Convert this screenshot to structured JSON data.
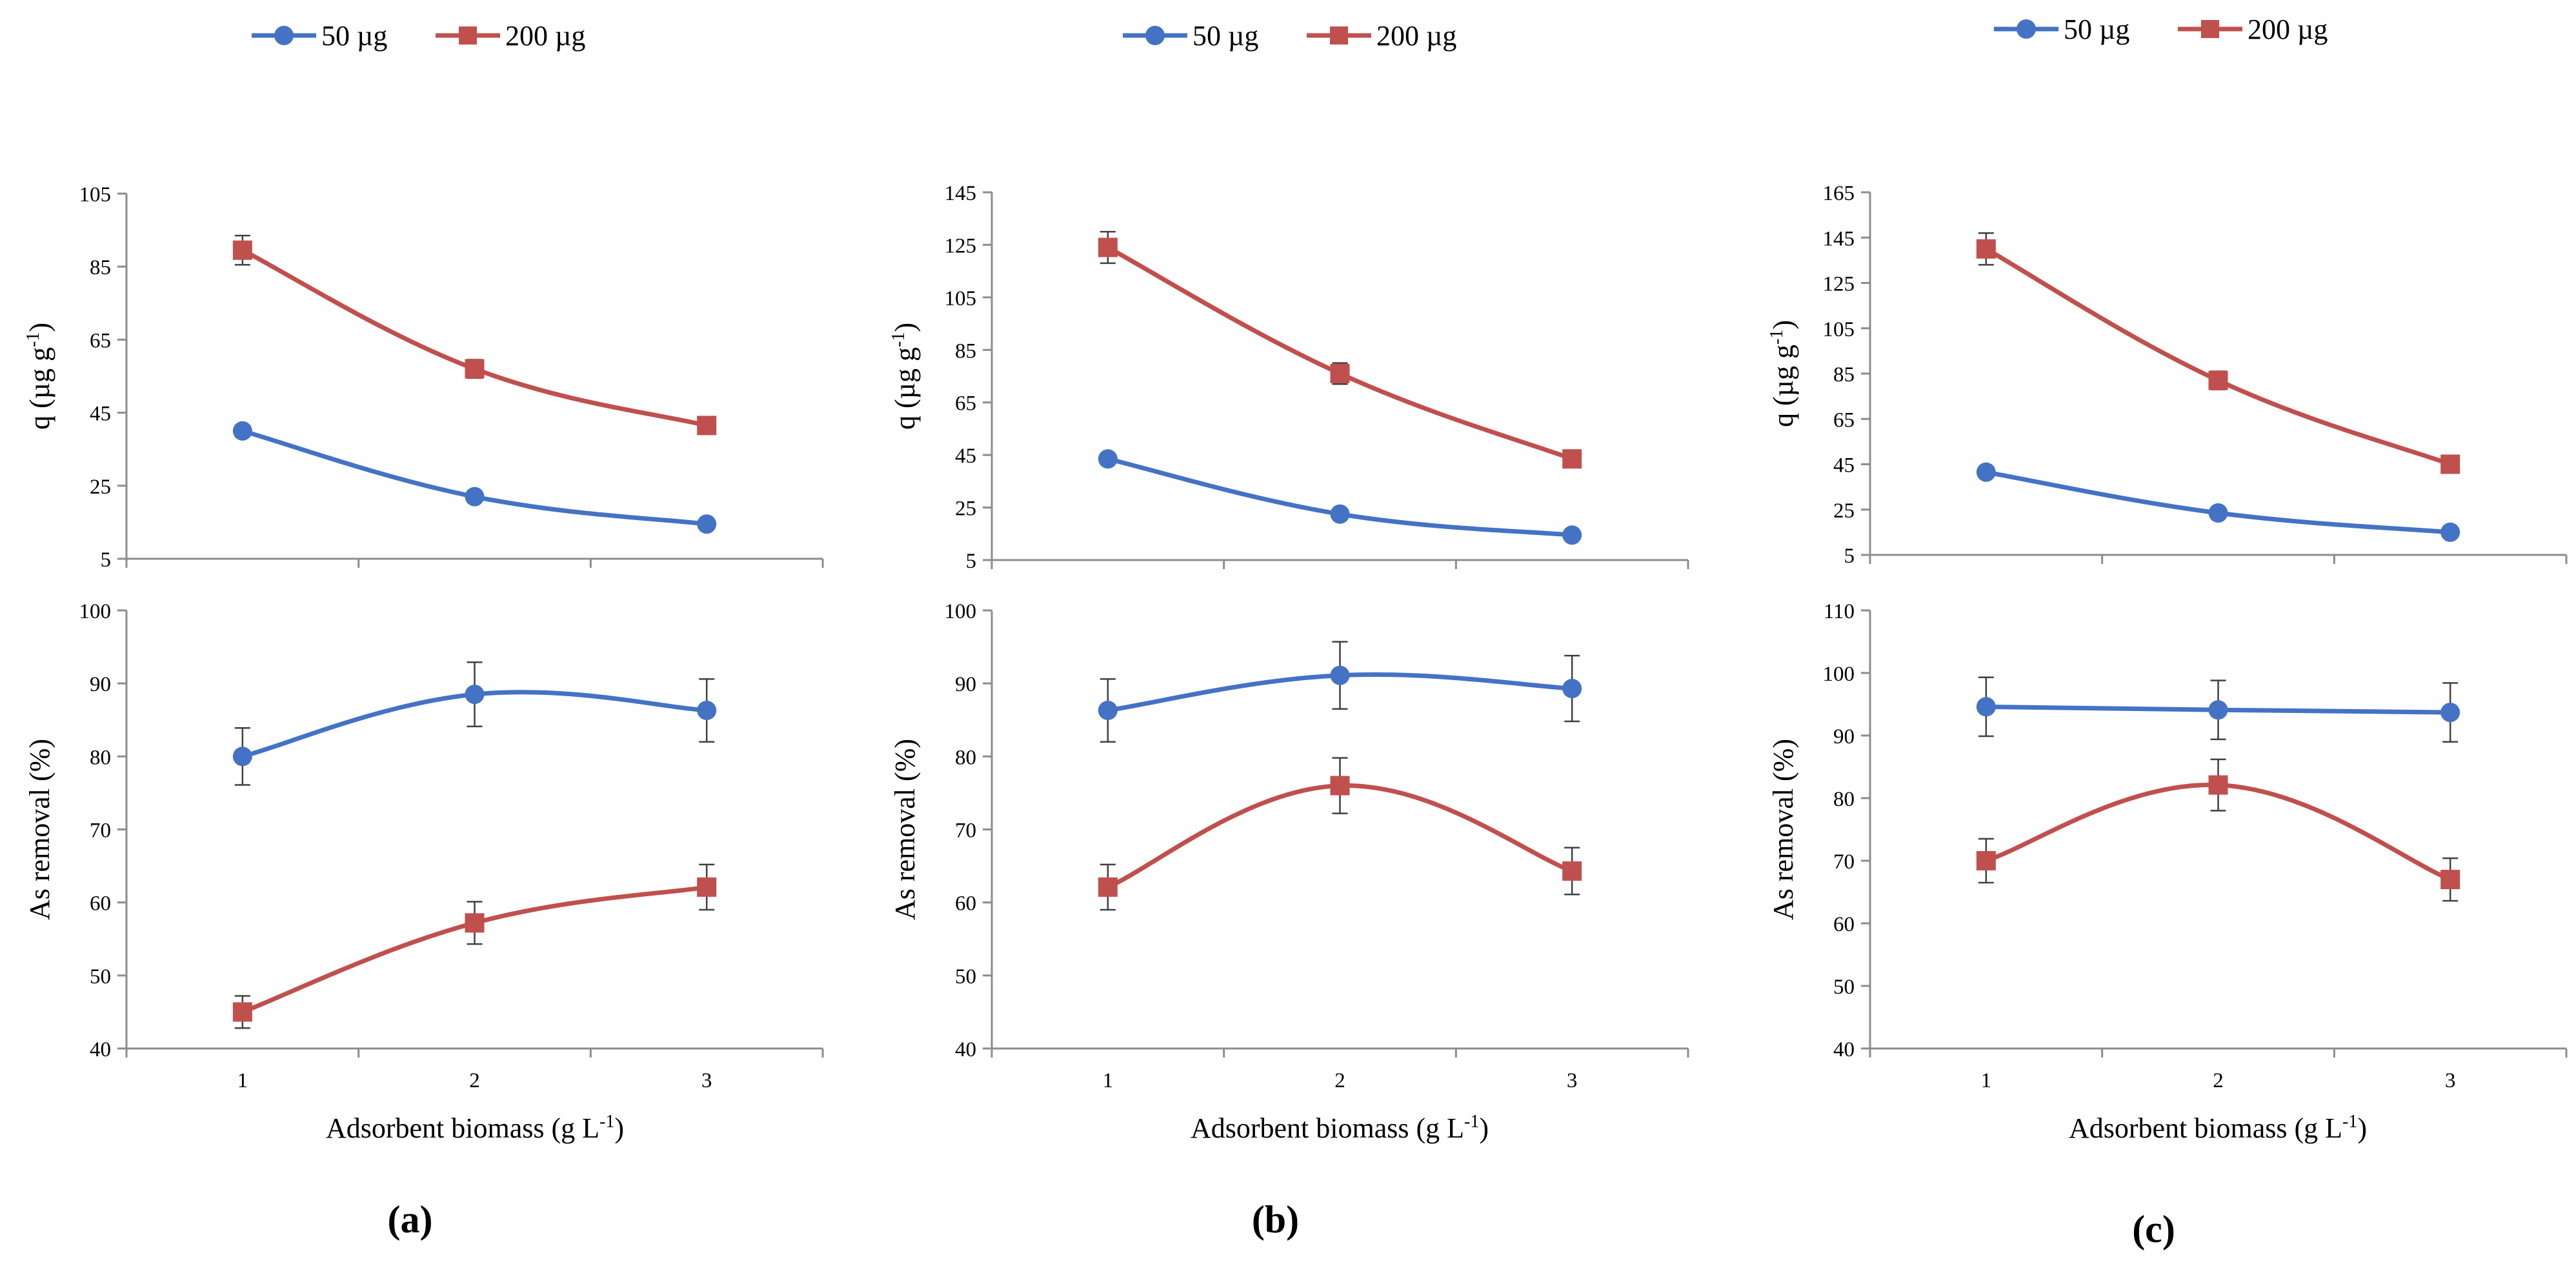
{
  "colors": {
    "series1": "#4472C4",
    "series2": "#C0504D",
    "axis": "#8C8C8C",
    "errbar": "#404040"
  },
  "chart_data": [
    {
      "panel_label": "(a)",
      "legend": [
        "50 µg",
        "200 µg"
      ],
      "xlabel": "Adsorbent biomass",
      "xunit_pre": "(g L",
      "xunit_sup": "-1",
      "xunit_post": ")",
      "categories": [
        "1",
        "2",
        "3"
      ],
      "subplots": [
        {
          "type": "line",
          "kind": "q",
          "ylabel": "q (µg g",
          "ylabel_sup": "-1",
          "ylabel_post": ")",
          "ylim": [
            5,
            105
          ],
          "yticks": [
            "5",
            "25",
            "45",
            "65",
            "85",
            "105"
          ],
          "series": [
            {
              "name": "50 µg",
              "values": [
                40,
                22,
                14.5
              ],
              "errors": [
                1.5,
                1,
                0.8
              ]
            },
            {
              "name": "200 µg",
              "values": [
                89.5,
                57,
                41.5
              ],
              "errors": [
                4,
                2.5,
                1
              ]
            }
          ]
        },
        {
          "type": "line",
          "kind": "removal",
          "ylabel": "As removal (%)",
          "ylim": [
            40,
            100
          ],
          "yticks": [
            "40",
            "50",
            "60",
            "70",
            "80",
            "90",
            "100"
          ],
          "series": [
            {
              "name": "50 µg",
              "values": [
                80,
                88.5,
                86.3
              ],
              "errors": [
                3.9,
                4.4,
                4.3
              ]
            },
            {
              "name": "200 µg",
              "values": [
                45,
                57.2,
                62.1
              ],
              "errors": [
                2.2,
                2.9,
                3.1
              ]
            }
          ]
        }
      ]
    },
    {
      "panel_label": "(b)",
      "legend": [
        "50 µg",
        "200 µg"
      ],
      "xlabel": "Adsorbent biomass",
      "xunit_pre": "(g L",
      "xunit_sup": "-1",
      "xunit_post": ")",
      "categories": [
        "1",
        "2",
        "3"
      ],
      "subplots": [
        {
          "type": "line",
          "kind": "q",
          "ylabel": "q (µg g",
          "ylabel_sup": "-1",
          "ylabel_post": ")",
          "ylim": [
            5,
            145
          ],
          "yticks": [
            "5",
            "25",
            "45",
            "65",
            "85",
            "105",
            "125",
            "145"
          ],
          "series": [
            {
              "name": "50 µg",
              "values": [
                43.5,
                22.5,
                14.5
              ],
              "errors": [
                1.2,
                1,
                0.8
              ]
            },
            {
              "name": "200 µg",
              "values": [
                124,
                76,
                43.5
              ],
              "errors": [
                6,
                4,
                1
              ]
            }
          ]
        },
        {
          "type": "line",
          "kind": "removal",
          "ylabel": "As removal (%)",
          "ylim": [
            40,
            100
          ],
          "yticks": [
            "40",
            "50",
            "60",
            "70",
            "80",
            "90",
            "100"
          ],
          "series": [
            {
              "name": "50 µg",
              "values": [
                86.3,
                91.1,
                89.3
              ],
              "errors": [
                4.3,
                4.6,
                4.5
              ]
            },
            {
              "name": "200 µg",
              "values": [
                62.1,
                76,
                64.3
              ],
              "errors": [
                3.1,
                3.8,
                3.2
              ]
            }
          ]
        }
      ]
    },
    {
      "panel_label": "(c)",
      "legend": [
        "50 µg",
        "200 µg"
      ],
      "xlabel": "Adsorbent biomass",
      "xunit_pre": "(g L",
      "xunit_sup": "-1",
      "xunit_post": ")",
      "categories": [
        "1",
        "2",
        "3"
      ],
      "subplots": [
        {
          "type": "line",
          "kind": "q",
          "ylabel": "q (µg g",
          "ylabel_sup": "-1",
          "ylabel_post": ")",
          "ylim": [
            5,
            165
          ],
          "yticks": [
            "5",
            "25",
            "45",
            "65",
            "85",
            "105",
            "125",
            "145",
            "165"
          ],
          "series": [
            {
              "name": "50 µg",
              "values": [
                41.5,
                23.5,
                15
              ],
              "errors": [
                1.2,
                1,
                0.8
              ]
            },
            {
              "name": "200 µg",
              "values": [
                140,
                82,
                45
              ],
              "errors": [
                7,
                4,
                1
              ]
            }
          ]
        },
        {
          "type": "line",
          "kind": "removal",
          "ylabel": "As removal (%)",
          "ylim": [
            40,
            110
          ],
          "yticks": [
            "40",
            "50",
            "60",
            "70",
            "80",
            "90",
            "100",
            "110"
          ],
          "series": [
            {
              "name": "50 µg",
              "values": [
                94.6,
                94.1,
                93.7
              ],
              "errors": [
                4.7,
                4.7,
                4.7
              ]
            },
            {
              "name": "200 µg",
              "values": [
                70,
                82.1,
                67
              ],
              "errors": [
                3.5,
                4.1,
                3.4
              ]
            }
          ]
        }
      ]
    }
  ]
}
